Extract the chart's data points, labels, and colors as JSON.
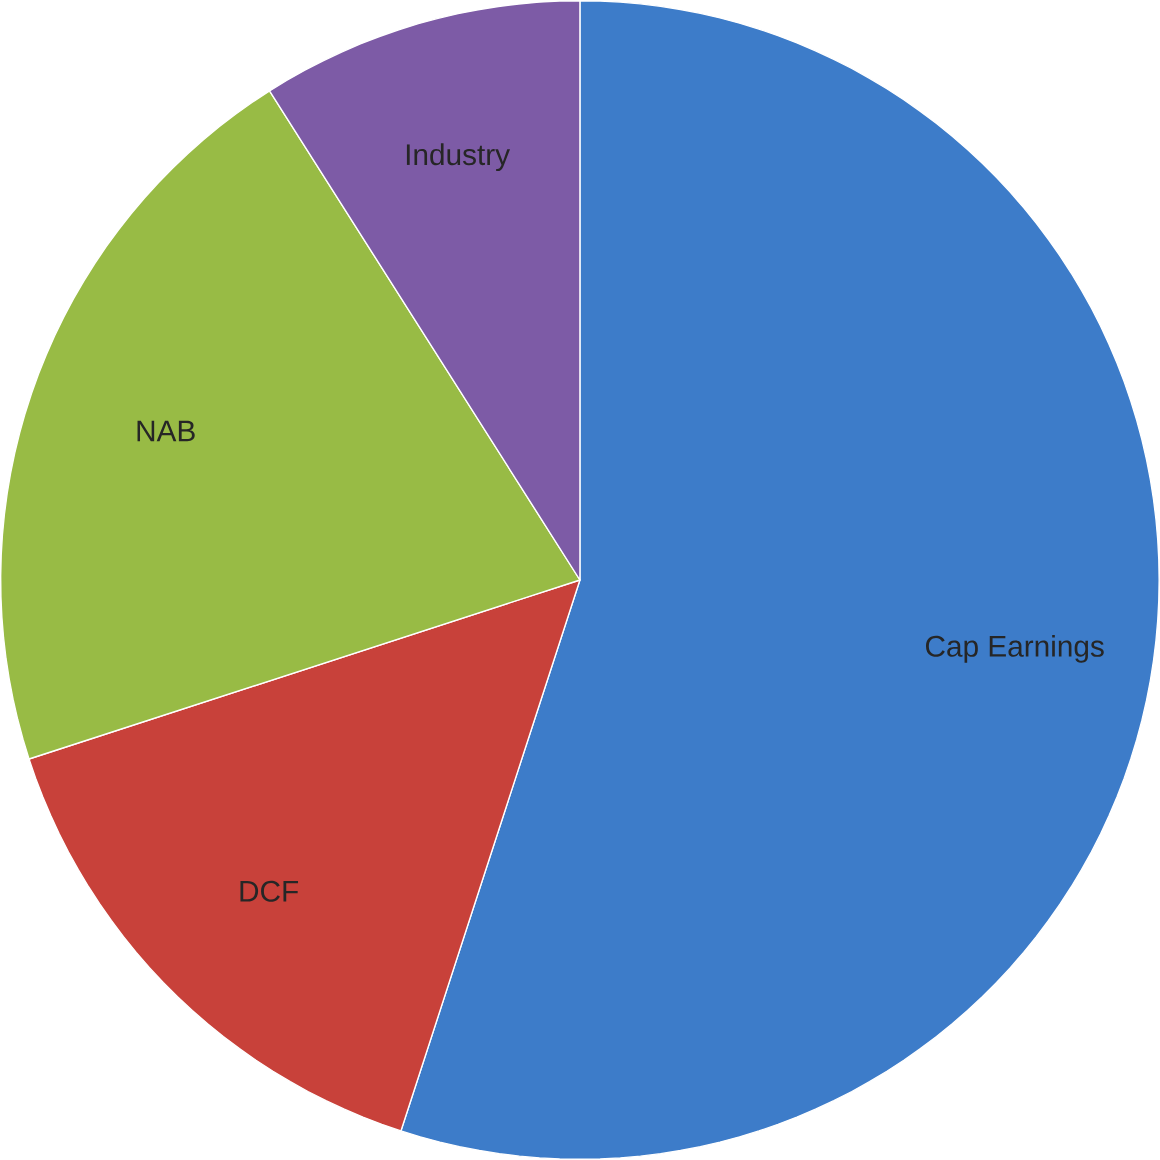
{
  "chart_data": {
    "type": "pie",
    "categories": [
      "Cap Earnings",
      "DCF",
      "NAB",
      "Industry"
    ],
    "values": [
      55,
      15,
      21,
      9
    ],
    "colors": [
      "#3d7cc9",
      "#c8413a",
      "#98bb45",
      "#7d5ba6"
    ]
  }
}
